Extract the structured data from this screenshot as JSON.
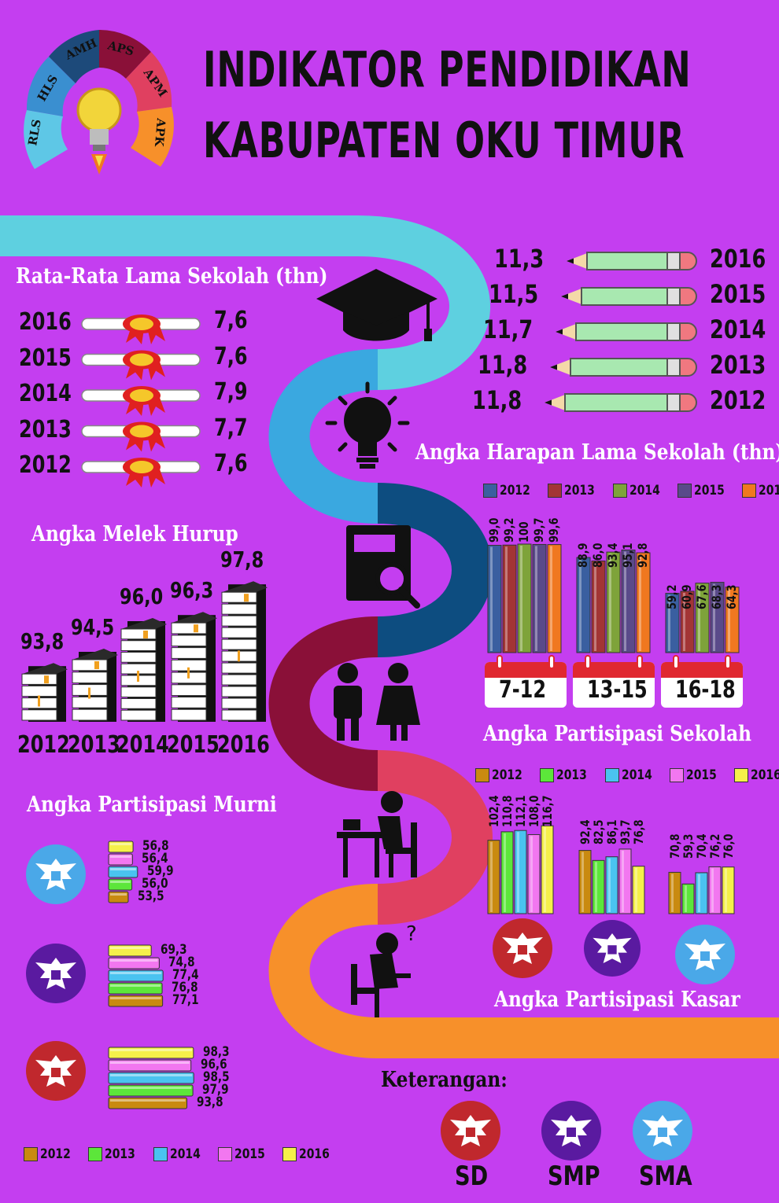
{
  "title": {
    "line1": "INDIKATOR PENDIDIKAN",
    "line2": "KABUPATEN OKU TIMUR"
  },
  "logo_segments": [
    "RLS",
    "HLS",
    "AMH",
    "APS",
    "APM",
    "APK"
  ],
  "colors": {
    "background": "#c43ef0",
    "y2012": "#3a5fa0",
    "y2013": "#a33535",
    "y2014": "#7ea33a",
    "y2015": "#5a4a8a",
    "y2016": "#f07820",
    "k2012": "#c98a10",
    "k2013": "#5ce63a",
    "k2014": "#4ac3f0",
    "k2015": "#f277f0",
    "k2016": "#f5f04a",
    "sd": "#c0282d",
    "smp": "#5a1aa0",
    "sma": "#4aa8e8"
  },
  "rls": {
    "title": "Rata-Rata Lama Sekolah (thn)",
    "rows": [
      {
        "year": "2016",
        "value": "7,6"
      },
      {
        "year": "2015",
        "value": "7,6"
      },
      {
        "year": "2014",
        "value": "7,9"
      },
      {
        "year": "2013",
        "value": "7,7"
      },
      {
        "year": "2012",
        "value": "7,6"
      }
    ]
  },
  "hls": {
    "title": "Angka Harapan Lama Sekolah (thn)",
    "rows": [
      {
        "year": "2016",
        "value": "11,3"
      },
      {
        "year": "2015",
        "value": "11,5"
      },
      {
        "year": "2014",
        "value": "11,7"
      },
      {
        "year": "2013",
        "value": "11,8"
      },
      {
        "year": "2012",
        "value": "11,8"
      }
    ]
  },
  "amh": {
    "title": "Angka Melek Hurup",
    "years": [
      "2012",
      "2013",
      "2014",
      "2015",
      "2016"
    ],
    "values": [
      "93,8",
      "94,5",
      "96,0",
      "96,3",
      "97,8"
    ]
  },
  "aps_title": "Angka Partisipasi Sekolah",
  "apm_title": "Angka Partisipasi Murni",
  "apk_title": "Angka Partisipasi Kasar",
  "legend_years": [
    "2012",
    "2013",
    "2014",
    "2015",
    "2016"
  ],
  "keterangan": {
    "title": "Keterangan:",
    "sd": "SD",
    "smp": "SMP",
    "sma": "SMA"
  },
  "chart_data": [
    {
      "type": "bar",
      "title": "Angka Partisipasi Sekolah",
      "categories": [
        "7-12",
        "13-15",
        "16-18"
      ],
      "series": [
        {
          "name": "2012",
          "values": [
            99.0,
            88.9,
            59.2
          ]
        },
        {
          "name": "2013",
          "values": [
            99.2,
            86.0,
            60.9
          ]
        },
        {
          "name": "2014",
          "values": [
            100,
            93.4,
            67.6
          ]
        },
        {
          "name": "2015",
          "values": [
            99.7,
            95.1,
            68.3
          ]
        },
        {
          "name": "2016",
          "values": [
            99.6,
            92.8,
            64.3
          ]
        }
      ],
      "labels": [
        [
          "99,0",
          "99,2",
          "100",
          "99,7",
          "99,6"
        ],
        [
          "88,9",
          "86,0",
          "93,4",
          "95,1",
          "92,8"
        ],
        [
          "59,2",
          "60,9",
          "67,6",
          "68,3",
          "64,3"
        ]
      ]
    },
    {
      "type": "bar",
      "title": "Angka Partisipasi Kasar",
      "categories": [
        "SD",
        "SMP",
        "SMA"
      ],
      "series": [
        {
          "name": "2012",
          "values": [
            102.4,
            92.4,
            70.8
          ]
        },
        {
          "name": "2013",
          "values": [
            110.8,
            82.5,
            59.3
          ]
        },
        {
          "name": "2014",
          "values": [
            112.1,
            86.1,
            70.4
          ]
        },
        {
          "name": "2015",
          "values": [
            108.0,
            93.7,
            76.2
          ]
        },
        {
          "name": "2016",
          "values": [
            116.7,
            76.8,
            76.0
          ]
        }
      ],
      "labels": [
        [
          "102,4",
          "110,8",
          "112,1",
          "108,0",
          "116,7"
        ],
        [
          "92,4",
          "82,5",
          "86,1",
          "93,7",
          "76,8"
        ],
        [
          "70,8",
          "59,3",
          "70,4",
          "76,2",
          "76,0"
        ]
      ]
    },
    {
      "type": "bar",
      "title": "Angka Partisipasi Murni",
      "categories": [
        "SMA",
        "SMP",
        "SD"
      ],
      "series": [
        {
          "name": "2012",
          "values": [
            53.5,
            77.1,
            93.8
          ]
        },
        {
          "name": "2013",
          "values": [
            56.0,
            76.8,
            97.9
          ]
        },
        {
          "name": "2014",
          "values": [
            59.9,
            77.4,
            98.5
          ]
        },
        {
          "name": "2015",
          "values": [
            56.4,
            74.8,
            96.6
          ]
        },
        {
          "name": "2016",
          "values": [
            56.8,
            69.3,
            98.3
          ]
        }
      ],
      "labels": [
        [
          "56,8",
          "56,4",
          "59,9",
          "56,0",
          "53,5"
        ],
        [
          "69,3",
          "74,8",
          "77,4",
          "76,8",
          "77,1"
        ],
        [
          "98,3",
          "96,6",
          "98,5",
          "97,9",
          "93,8"
        ]
      ]
    }
  ]
}
